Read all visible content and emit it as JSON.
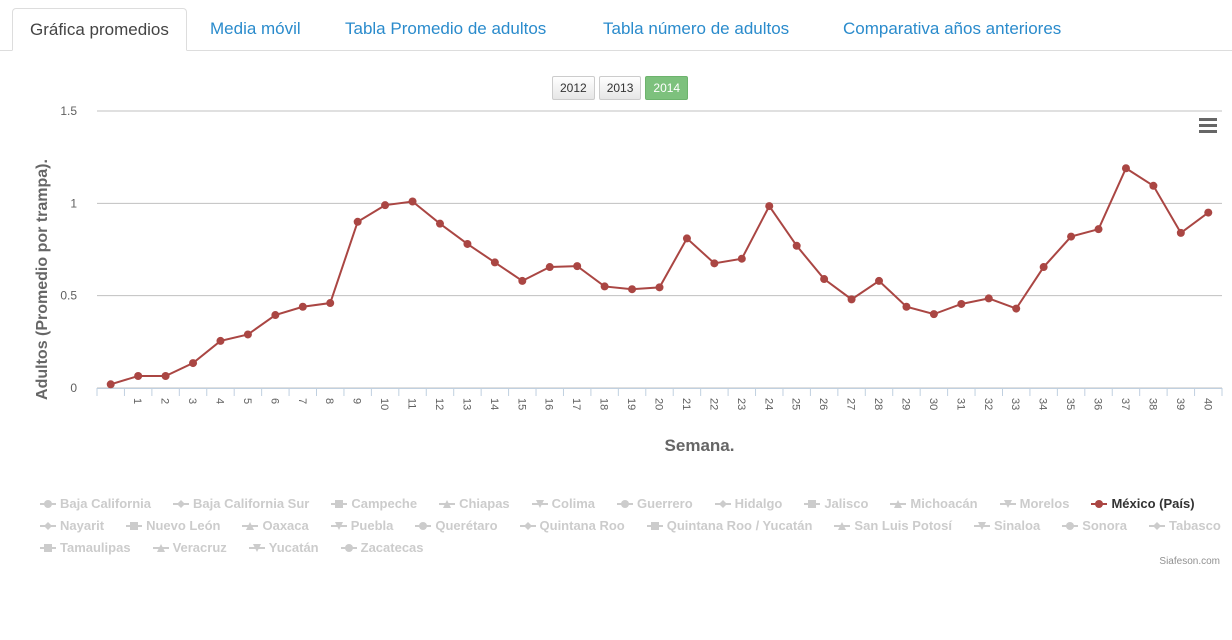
{
  "tabs": [
    "Gráfica promedios",
    "Media móvil",
    "Tabla Promedio de adultos",
    "Tabla número de adultos",
    "Comparativa años anteriores"
  ],
  "active_tab": 0,
  "year_buttons": [
    "2012",
    "2013",
    "2014"
  ],
  "active_year": 2,
  "chart_data": {
    "type": "line",
    "y_label": "Adultos (Promedio por trampa).",
    "x_label": "Semana.",
    "credits": "Siafeson.com",
    "categories": [
      null,
      "1",
      "2",
      "3",
      "4",
      "5",
      "6",
      "7",
      "8",
      "9",
      "10",
      "11",
      "12",
      "13",
      "14",
      "15",
      "16",
      "17",
      "18",
      "19",
      "20",
      "21",
      "22",
      "23",
      "24",
      "25",
      "26",
      "27",
      "28",
      "29",
      "30",
      "31",
      "32",
      "33",
      "34",
      "35",
      "36",
      "37",
      "38",
      "39",
      "40"
    ],
    "ylim": [
      0,
      1.5
    ],
    "yticks": [
      0,
      0.5,
      1,
      1.5
    ],
    "grid": true,
    "inactive_color": "#cccccc",
    "series": [
      {
        "name": "Baja California",
        "visible": false
      },
      {
        "name": "Baja California Sur",
        "visible": false
      },
      {
        "name": "Campeche",
        "visible": false
      },
      {
        "name": "Chiapas",
        "visible": false
      },
      {
        "name": "Colima",
        "visible": false
      },
      {
        "name": "Guerrero",
        "visible": false
      },
      {
        "name": "Hidalgo",
        "visible": false
      },
      {
        "name": "Jalisco",
        "visible": false
      },
      {
        "name": "Michoacán",
        "visible": false
      },
      {
        "name": "Morelos",
        "visible": false
      },
      {
        "name": "México (País)",
        "visible": true,
        "color": "#aa4643",
        "values": [
          0.02,
          0.065,
          0.065,
          0.135,
          0.255,
          0.29,
          0.395,
          0.44,
          0.46,
          0.9,
          0.99,
          1.01,
          0.89,
          0.78,
          0.68,
          0.58,
          0.655,
          0.66,
          0.55,
          0.535,
          0.545,
          0.81,
          0.675,
          0.7,
          0.985,
          0.77,
          0.59,
          0.48,
          0.58,
          0.44,
          0.4,
          0.455,
          0.485,
          0.43,
          0.655,
          0.82,
          0.86,
          1.19,
          1.095,
          0.84,
          0.95
        ]
      },
      {
        "name": "Nayarit",
        "visible": false
      },
      {
        "name": "Nuevo León",
        "visible": false
      },
      {
        "name": "Oaxaca",
        "visible": false
      },
      {
        "name": "Puebla",
        "visible": false
      },
      {
        "name": "Querétaro",
        "visible": false
      },
      {
        "name": "Quintana Roo",
        "visible": false
      },
      {
        "name": "Quintana Roo / Yucatán",
        "visible": false
      },
      {
        "name": "San Luis Potosí",
        "visible": false
      },
      {
        "name": "Sinaloa",
        "visible": false
      },
      {
        "name": "Sonora",
        "visible": false
      },
      {
        "name": "Tabasco",
        "visible": false
      },
      {
        "name": "Tamaulipas",
        "visible": false
      },
      {
        "name": "Veracruz",
        "visible": false
      },
      {
        "name": "Yucatán",
        "visible": false
      },
      {
        "name": "Zacatecas",
        "visible": false
      }
    ]
  }
}
